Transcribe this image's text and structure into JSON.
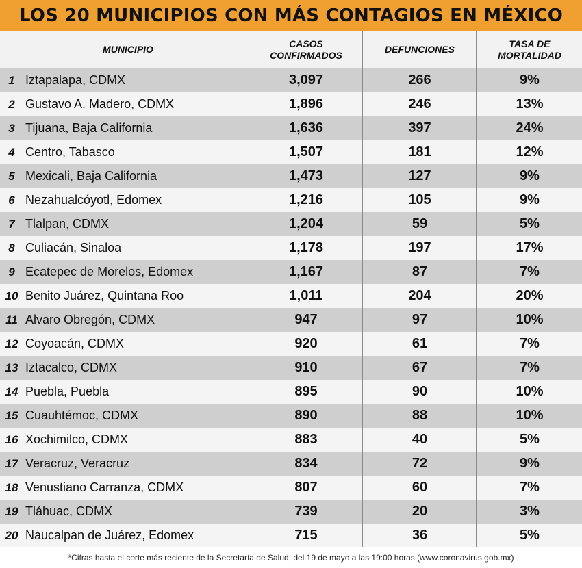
{
  "title": "LOS 20 MUNICIPIOS CON MÁS CONTAGIOS EN MÉXICO",
  "footnote": "*Cifras hasta el corte más reciente de la Secretaría de Salud, del 19 de mayo a las 19:00 horas (www.coronavirus.gob.mx)",
  "colors": {
    "title_bg": "#f0a030",
    "row_dark": "#cfcfcf",
    "row_light": "#f4f4f4"
  },
  "chart_data": {
    "type": "table",
    "title": "LOS 20 MUNICIPIOS CON MÁS CONTAGIOS EN MÉXICO",
    "columns": [
      "",
      "MUNICIPIO",
      "CASOS CONFIRMADOS",
      "DEFUNCIONES",
      "TASA DE MORTALIDAD"
    ],
    "header": {
      "municipio": "MUNICIPIO",
      "casos": [
        "CASOS",
        "CONFIRMADOS"
      ],
      "defunciones": "DEFUNCIONES",
      "tasa": [
        "TASA DE",
        "MORTALIDAD"
      ]
    },
    "rows": [
      {
        "rank": "1",
        "municipio": "Iztapalapa, CDMX",
        "casos": "3,097",
        "defunciones": "266",
        "tasa": "9%"
      },
      {
        "rank": "2",
        "municipio": "Gustavo A. Madero, CDMX",
        "casos": "1,896",
        "defunciones": "246",
        "tasa": "13%"
      },
      {
        "rank": "3",
        "municipio": "Tijuana, Baja California",
        "casos": "1,636",
        "defunciones": "397",
        "tasa": "24%"
      },
      {
        "rank": "4",
        "municipio": "Centro, Tabasco",
        "casos": "1,507",
        "defunciones": "181",
        "tasa": "12%"
      },
      {
        "rank": "5",
        "municipio": "Mexicali, Baja California",
        "casos": "1,473",
        "defunciones": "127",
        "tasa": "9%"
      },
      {
        "rank": "6",
        "municipio": "Nezahualcóyotl, Edomex",
        "casos": "1,216",
        "defunciones": "105",
        "tasa": "9%"
      },
      {
        "rank": "7",
        "municipio": "Tlalpan, CDMX",
        "casos": "1,204",
        "defunciones": "59",
        "tasa": "5%"
      },
      {
        "rank": "8",
        "municipio": "Culiacán, Sinaloa",
        "casos": "1,178",
        "defunciones": "197",
        "tasa": "17%"
      },
      {
        "rank": "9",
        "municipio": "Ecatepec de Morelos, Edomex",
        "casos": "1,167",
        "defunciones": "87",
        "tasa": "7%"
      },
      {
        "rank": "10",
        "municipio": "Benito Juárez, Quintana Roo",
        "casos": "1,011",
        "defunciones": "204",
        "tasa": "20%"
      },
      {
        "rank": "11",
        "municipio": "Alvaro Obregón, CDMX",
        "casos": "947",
        "defunciones": "97",
        "tasa": "10%"
      },
      {
        "rank": "12",
        "municipio": "Coyoacán, CDMX",
        "casos": "920",
        "defunciones": "61",
        "tasa": "7%"
      },
      {
        "rank": "13",
        "municipio": "Iztacalco, CDMX",
        "casos": "910",
        "defunciones": "67",
        "tasa": "7%"
      },
      {
        "rank": "14",
        "municipio": "Puebla, Puebla",
        "casos": "895",
        "defunciones": "90",
        "tasa": "10%"
      },
      {
        "rank": "15",
        "municipio": "Cuauhtémoc, CDMX",
        "casos": "890",
        "defunciones": "88",
        "tasa": "10%"
      },
      {
        "rank": "16",
        "municipio": "Xochimilco, CDMX",
        "casos": "883",
        "defunciones": "40",
        "tasa": "5%"
      },
      {
        "rank": "17",
        "municipio": "Veracruz, Veracruz",
        "casos": "834",
        "defunciones": "72",
        "tasa": "9%"
      },
      {
        "rank": "18",
        "municipio": "Venustiano Carranza, CDMX",
        "casos": "807",
        "defunciones": "60",
        "tasa": "7%"
      },
      {
        "rank": "19",
        "municipio": "Tláhuac, CDMX",
        "casos": "739",
        "defunciones": "20",
        "tasa": "3%"
      },
      {
        "rank": "20",
        "municipio": "Naucalpan de Juárez, Edomex",
        "casos": "715",
        "defunciones": "36",
        "tasa": "5%"
      }
    ]
  }
}
